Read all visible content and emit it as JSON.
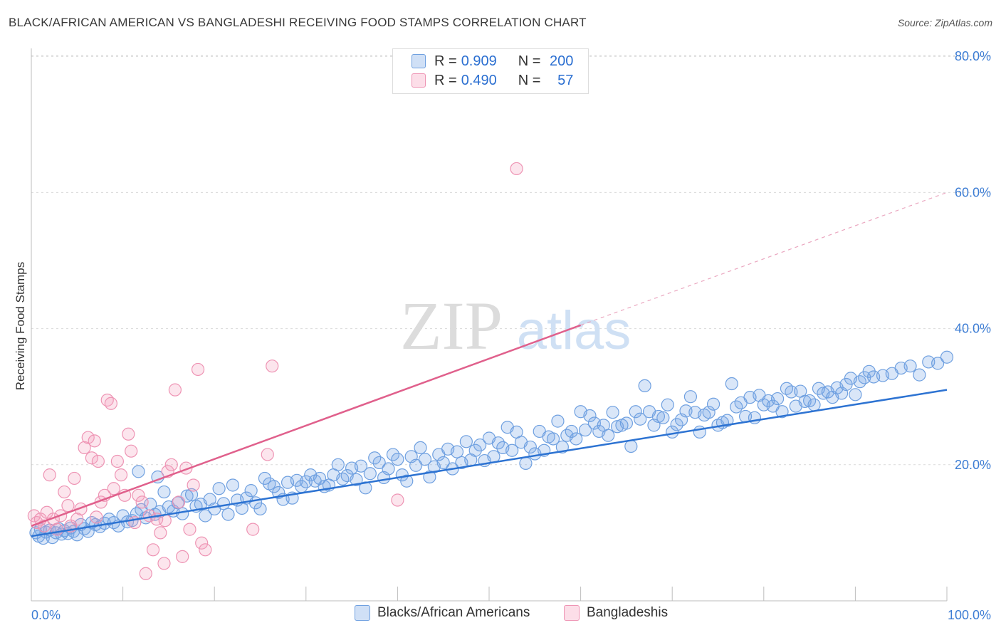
{
  "header": {
    "title": "BLACK/AFRICAN AMERICAN VS BANGLADESHI RECEIVING FOOD STAMPS CORRELATION CHART",
    "source": "Source: ZipAtlas.com"
  },
  "watermark": {
    "zip": "ZIP",
    "atlas": "atlas"
  },
  "legend": {
    "rows": [
      {
        "r_label": "R = ",
        "r_value": "0.909",
        "n_label": "N = ",
        "n_value": "200",
        "color": "#6fa3e8"
      },
      {
        "r_label": "R = ",
        "r_value": "0.490",
        "n_label": "N = ",
        "n_value": "57",
        "color": "#f29ab8"
      }
    ]
  },
  "bottom_legend": {
    "series1": "Blacks/African Americans",
    "series2": "Bangladeshis"
  },
  "chart_data": {
    "type": "scatter",
    "ylabel": "Receiving Food Stamps",
    "xlim": [
      0,
      100
    ],
    "ylim": [
      0,
      85
    ],
    "x_tick_labels": [
      {
        "value": 0,
        "label": "0.0%"
      },
      {
        "value": 100,
        "label": "100.0%"
      }
    ],
    "y_tick_labels": [
      {
        "value": 20,
        "label": "20.0%"
      },
      {
        "value": 40,
        "label": "40.0%"
      },
      {
        "value": 60,
        "label": "60.0%"
      },
      {
        "value": 80,
        "label": "80.0%"
      }
    ],
    "colors": {
      "blue_fill": "rgba(120,165,230,0.28)",
      "blue_stroke": "#6fa0e0",
      "blue_line": "#2d73d2",
      "pink_fill": "rgba(245,160,190,0.28)",
      "pink_stroke": "#ee94b4",
      "pink_line": "#e0608c"
    },
    "series": [
      {
        "name": "Blacks/African Americans",
        "trend": {
          "x0": 0,
          "y0": 9.5,
          "x1": 100,
          "y1": 31
        },
        "points": [
          [
            0.5,
            10
          ],
          [
            0.8,
            9.5
          ],
          [
            1,
            10.5
          ],
          [
            1.3,
            9.2
          ],
          [
            1.6,
            10.1
          ],
          [
            2,
            10.4
          ],
          [
            2.3,
            9.3
          ],
          [
            2.7,
            10
          ],
          [
            3,
            10.6
          ],
          [
            3.3,
            9.8
          ],
          [
            3.6,
            10.3
          ],
          [
            4,
            9.9
          ],
          [
            4.3,
            10.7
          ],
          [
            4.6,
            10.2
          ],
          [
            5,
            9.7
          ],
          [
            5.4,
            11.2
          ],
          [
            5.8,
            10.6
          ],
          [
            6.2,
            10.2
          ],
          [
            6.6,
            11.5
          ],
          [
            7,
            11.2
          ],
          [
            7.5,
            10.9
          ],
          [
            8,
            11.4
          ],
          [
            8.5,
            12
          ],
          [
            9,
            11.5
          ],
          [
            9.5,
            11
          ],
          [
            10,
            12.5
          ],
          [
            10.5,
            11.6
          ],
          [
            11,
            11.8
          ],
          [
            11.5,
            12.8
          ],
          [
            12,
            13.4
          ],
          [
            12.5,
            12.2
          ],
          [
            13,
            14.2
          ],
          [
            13.5,
            12.7
          ],
          [
            14,
            13.1
          ],
          [
            14.5,
            16
          ],
          [
            15,
            13.8
          ],
          [
            15.5,
            13.2
          ],
          [
            16,
            14.4
          ],
          [
            16.5,
            12.8
          ],
          [
            17,
            15.4
          ],
          [
            17.5,
            15.6
          ],
          [
            18,
            13.9
          ],
          [
            18.5,
            14.2
          ],
          [
            19,
            12.5
          ],
          [
            19.5,
            14.9
          ],
          [
            20,
            13.5
          ],
          [
            20.5,
            16.5
          ],
          [
            21,
            14.3
          ],
          [
            21.5,
            12.7
          ],
          [
            22,
            17
          ],
          [
            22.5,
            14.8
          ],
          [
            23,
            13.6
          ],
          [
            23.5,
            15.1
          ],
          [
            24,
            16.2
          ],
          [
            24.5,
            14.4
          ],
          [
            25,
            13.5
          ],
          [
            25.5,
            18
          ],
          [
            26,
            17.2
          ],
          [
            26.5,
            16.8
          ],
          [
            27,
            15.9
          ],
          [
            27.5,
            14.9
          ],
          [
            28,
            17.4
          ],
          [
            28.5,
            15.1
          ],
          [
            29,
            17.7
          ],
          [
            29.5,
            16.8
          ],
          [
            30,
            17.5
          ],
          [
            30.5,
            18.5
          ],
          [
            31,
            17.6
          ],
          [
            31.5,
            18
          ],
          [
            32,
            16.8
          ],
          [
            32.5,
            17
          ],
          [
            33,
            18.5
          ],
          [
            33.5,
            20
          ],
          [
            34,
            17.9
          ],
          [
            34.5,
            18.4
          ],
          [
            35,
            19.5
          ],
          [
            35.5,
            17.8
          ],
          [
            36,
            19.8
          ],
          [
            36.5,
            16.6
          ],
          [
            37,
            18.7
          ],
          [
            37.5,
            21
          ],
          [
            38,
            20.3
          ],
          [
            38.5,
            18.1
          ],
          [
            39,
            19.4
          ],
          [
            39.5,
            21.5
          ],
          [
            40,
            20.8
          ],
          [
            40.5,
            18.5
          ],
          [
            41,
            17.6
          ],
          [
            41.5,
            21.2
          ],
          [
            42,
            19.9
          ],
          [
            42.5,
            22.5
          ],
          [
            43,
            20.8
          ],
          [
            43.5,
            18.2
          ],
          [
            44,
            19.7
          ],
          [
            44.5,
            21.5
          ],
          [
            45,
            20.3
          ],
          [
            45.5,
            22.3
          ],
          [
            46,
            19.4
          ],
          [
            46.5,
            21.9
          ],
          [
            47,
            20.3
          ],
          [
            47.5,
            23.4
          ],
          [
            48,
            20.7
          ],
          [
            48.5,
            22.1
          ],
          [
            49,
            22.9
          ],
          [
            49.5,
            20.6
          ],
          [
            50,
            23.9
          ],
          [
            50.5,
            21.2
          ],
          [
            51,
            23.2
          ],
          [
            51.5,
            22.5
          ],
          [
            52,
            25.5
          ],
          [
            52.5,
            22.1
          ],
          [
            53,
            24.8
          ],
          [
            53.5,
            23.3
          ],
          [
            54,
            20.2
          ],
          [
            54.5,
            22.6
          ],
          [
            55,
            21.6
          ],
          [
            55.5,
            24.9
          ],
          [
            56,
            22.1
          ],
          [
            56.5,
            24.1
          ],
          [
            57,
            23.8
          ],
          [
            57.5,
            26.4
          ],
          [
            58,
            22.6
          ],
          [
            58.5,
            24.3
          ],
          [
            59,
            24.9
          ],
          [
            59.5,
            23.8
          ],
          [
            60,
            27.8
          ],
          [
            60.5,
            25.1
          ],
          [
            61,
            27.2
          ],
          [
            61.5,
            26.1
          ],
          [
            62,
            24.9
          ],
          [
            62.5,
            25.8
          ],
          [
            63,
            24.3
          ],
          [
            63.5,
            27.7
          ],
          [
            64,
            25.6
          ],
          [
            64.5,
            25.8
          ],
          [
            65,
            26.1
          ],
          [
            65.5,
            22.7
          ],
          [
            66,
            27.8
          ],
          [
            66.5,
            26.7
          ],
          [
            67,
            31.6
          ],
          [
            67.5,
            27.8
          ],
          [
            68,
            25.8
          ],
          [
            68.5,
            27.1
          ],
          [
            69,
            26.9
          ],
          [
            69.5,
            28.8
          ],
          [
            70,
            24.8
          ],
          [
            70.5,
            25.9
          ],
          [
            71,
            26.6
          ],
          [
            71.5,
            27.9
          ],
          [
            72,
            30
          ],
          [
            72.5,
            27.7
          ],
          [
            73,
            24.8
          ],
          [
            73.5,
            27.3
          ],
          [
            74,
            27.7
          ],
          [
            74.5,
            28.9
          ],
          [
            75,
            25.8
          ],
          [
            75.5,
            26.2
          ],
          [
            76,
            26.5
          ],
          [
            76.5,
            31.9
          ],
          [
            77,
            28.5
          ],
          [
            77.5,
            29.1
          ],
          [
            78,
            27.1
          ],
          [
            78.5,
            29.9
          ],
          [
            79,
            26.9
          ],
          [
            79.5,
            30.2
          ],
          [
            80,
            28.8
          ],
          [
            80.5,
            29.4
          ],
          [
            81,
            28.6
          ],
          [
            81.5,
            29.7
          ],
          [
            82,
            27.8
          ],
          [
            82.5,
            31.2
          ],
          [
            83,
            30.7
          ],
          [
            83.5,
            28.6
          ],
          [
            84,
            30.8
          ],
          [
            84.5,
            29.3
          ],
          [
            85,
            29.4
          ],
          [
            85.5,
            28.8
          ],
          [
            86,
            31.2
          ],
          [
            86.5,
            30.5
          ],
          [
            87,
            30.7
          ],
          [
            87.5,
            29.9
          ],
          [
            88,
            31.3
          ],
          [
            88.5,
            30.5
          ],
          [
            89,
            31.8
          ],
          [
            89.5,
            32.7
          ],
          [
            90,
            30.3
          ],
          [
            90.5,
            32.2
          ],
          [
            91,
            32.8
          ],
          [
            91.5,
            33.7
          ],
          [
            92,
            32.9
          ],
          [
            93,
            33.1
          ],
          [
            94,
            33.4
          ],
          [
            95,
            34.2
          ],
          [
            96,
            34.5
          ],
          [
            97,
            33.2
          ],
          [
            98,
            35.1
          ],
          [
            99,
            34.9
          ],
          [
            100,
            35.8
          ],
          [
            11.7,
            19
          ],
          [
            13.8,
            18.2
          ]
        ]
      },
      {
        "name": "Bangladeshis",
        "trend": {
          "x0": 0,
          "y0": 11,
          "x1": 60,
          "y1": 40.5,
          "dash_x1": 100,
          "dash_y1": 60
        },
        "points": [
          [
            0.3,
            12.5
          ],
          [
            0.6,
            11.5
          ],
          [
            1,
            12
          ],
          [
            1.4,
            11
          ],
          [
            1.7,
            13
          ],
          [
            2,
            18.5
          ],
          [
            2.4,
            12
          ],
          [
            2.8,
            10.5
          ],
          [
            3.2,
            12.5
          ],
          [
            3.6,
            16
          ],
          [
            4,
            14
          ],
          [
            4.3,
            11
          ],
          [
            4.7,
            18
          ],
          [
            5,
            12
          ],
          [
            5.4,
            13.5
          ],
          [
            5.8,
            22.5
          ],
          [
            6.2,
            24
          ],
          [
            6.6,
            21
          ],
          [
            6.9,
            23.5
          ],
          [
            7.3,
            20.5
          ],
          [
            7.6,
            14.5
          ],
          [
            8,
            15.5
          ],
          [
            8.3,
            29.5
          ],
          [
            8.7,
            29
          ],
          [
            9,
            16.5
          ],
          [
            9.4,
            20.5
          ],
          [
            9.8,
            18.5
          ],
          [
            10.2,
            15.5
          ],
          [
            10.6,
            24.5
          ],
          [
            10.9,
            22
          ],
          [
            11.3,
            11.5
          ],
          [
            11.7,
            15.5
          ],
          [
            12.1,
            14.5
          ],
          [
            12.5,
            4
          ],
          [
            12.9,
            12.5
          ],
          [
            13.3,
            7.5
          ],
          [
            13.7,
            12
          ],
          [
            14.1,
            10
          ],
          [
            14.5,
            5.5
          ],
          [
            14.9,
            19
          ],
          [
            15.3,
            20
          ],
          [
            15.7,
            31
          ],
          [
            16.1,
            14.5
          ],
          [
            16.5,
            6.5
          ],
          [
            16.9,
            19.5
          ],
          [
            17.3,
            10.5
          ],
          [
            17.7,
            17
          ],
          [
            18.2,
            34
          ],
          [
            18.6,
            8.5
          ],
          [
            19,
            7.5
          ],
          [
            24.2,
            10.5
          ],
          [
            25.8,
            21.5
          ],
          [
            26.3,
            34.5
          ],
          [
            40,
            14.8
          ],
          [
            53,
            63.5
          ],
          [
            14.6,
            11.8
          ],
          [
            7.1,
            12.3
          ]
        ]
      }
    ]
  }
}
